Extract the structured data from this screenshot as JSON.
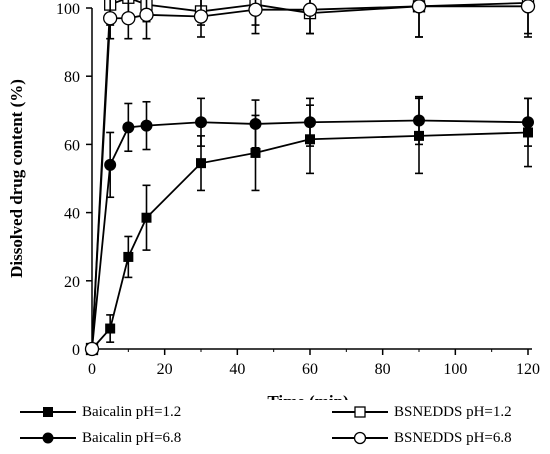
{
  "chart_data": {
    "type": "line",
    "xlabel": "Time (min)",
    "ylabel": "Dissolved drug content (%)",
    "xlim": [
      0,
      120
    ],
    "ylim": [
      0,
      100
    ],
    "x_ticks": [
      0,
      20,
      40,
      60,
      80,
      100,
      120
    ],
    "y_ticks": [
      0,
      20,
      40,
      60,
      80,
      100
    ],
    "grid": false,
    "legend_position": "bottom",
    "series": [
      {
        "name": "Baicalin pH=1.2",
        "marker": "filled-square",
        "x": [
          0,
          5,
          10,
          15,
          30,
          45,
          60,
          90,
          120
        ],
        "y": [
          0,
          6,
          27,
          38.5,
          54.5,
          57.5,
          61.5,
          62.5,
          63.5
        ],
        "err": [
          0,
          4,
          6,
          9.5,
          8,
          11,
          10,
          11,
          10
        ]
      },
      {
        "name": "Baicalin pH=6.8",
        "marker": "filled-circle",
        "x": [
          0,
          5,
          10,
          15,
          30,
          45,
          60,
          90,
          120
        ],
        "y": [
          0,
          54,
          65,
          65.5,
          66.5,
          66,
          66.5,
          67,
          66.5
        ],
        "err": [
          0,
          9.5,
          7,
          7,
          7,
          7,
          7,
          7,
          7
        ]
      },
      {
        "name": "BSNEDDS pH=1.2",
        "marker": "open-square",
        "x": [
          0,
          5,
          10,
          15,
          30,
          45,
          60,
          90,
          120
        ],
        "y": [
          0,
          101,
          103,
          101,
          99,
          101,
          98.5,
          100.5,
          101.5
        ],
        "err": [
          0,
          6,
          6,
          5,
          4,
          6,
          6,
          9,
          9
        ]
      },
      {
        "name": "BSNEDDS pH=6.8",
        "marker": "open-circle",
        "x": [
          0,
          5,
          10,
          15,
          30,
          45,
          60,
          90,
          120
        ],
        "y": [
          0,
          97,
          97,
          98,
          97.5,
          99.5,
          99.5,
          100.5,
          100.5
        ],
        "err": [
          0,
          6,
          6,
          7,
          6,
          7,
          7,
          9,
          9
        ]
      }
    ]
  }
}
